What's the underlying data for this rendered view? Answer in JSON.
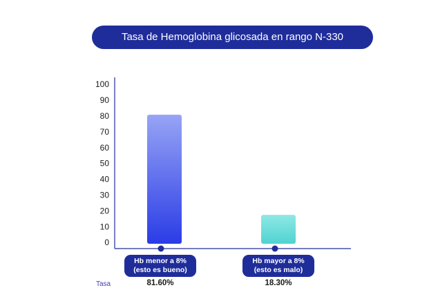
{
  "chart_data": {
    "type": "bar",
    "title": "Tasa de Hemoglobina glicosada en rango N-330",
    "categories": [
      {
        "line1": "Hb menor a 8%",
        "line2": "(esto es bueno)"
      },
      {
        "line1": "Hb mayor a 8%",
        "line2": "(esto es malo)"
      }
    ],
    "values": [
      81.6,
      18.3
    ],
    "value_labels": [
      "81.60%",
      "18.30%"
    ],
    "row_label": "Tasa",
    "ylim": [
      0,
      100
    ],
    "yticks": [
      0,
      10,
      20,
      30,
      40,
      50,
      60,
      70,
      80,
      90,
      100
    ],
    "grid": false,
    "legend": "none",
    "colors": {
      "bar1_top": "#97a4f5",
      "bar1_bottom": "#2a3ce6",
      "bar2_top": "#8fe8e5",
      "bar2_bottom": "#4fd3d1",
      "axis": "#1f2d9b",
      "pill": "#1f2d9b"
    }
  }
}
